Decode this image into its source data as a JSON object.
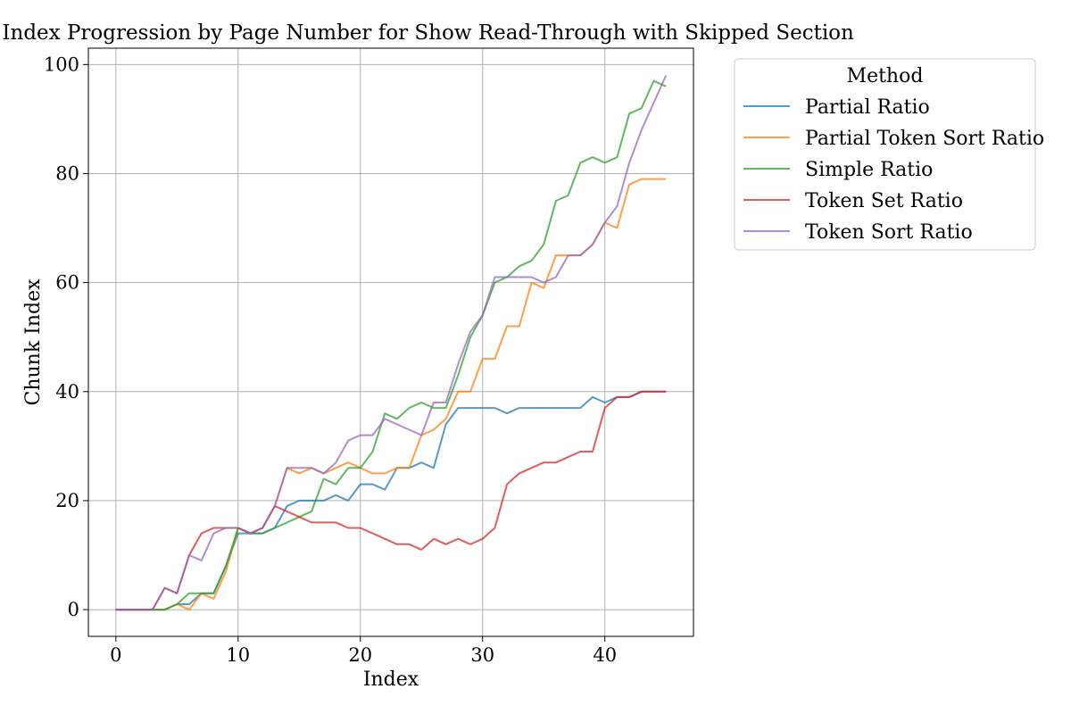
{
  "chart_data": {
    "type": "line",
    "title": "Chunk Index Progression by Page Number for Show Read-Through with Skipped Section",
    "xlabel": "Index",
    "ylabel": "Chunk Index",
    "xlim": [
      -2.25,
      47.25
    ],
    "ylim": [
      -4.9,
      103
    ],
    "xticks": [
      0,
      10,
      20,
      30,
      40
    ],
    "yticks": [
      0,
      20,
      40,
      60,
      80,
      100
    ],
    "grid": true,
    "legend": {
      "title": "Method",
      "placement": "outside-top-right"
    },
    "x": [
      0,
      1,
      2,
      3,
      4,
      5,
      6,
      7,
      8,
      9,
      10,
      11,
      12,
      13,
      14,
      15,
      16,
      17,
      18,
      19,
      20,
      21,
      22,
      23,
      24,
      25,
      26,
      27,
      28,
      29,
      30,
      31,
      32,
      33,
      34,
      35,
      36,
      37,
      38,
      39,
      40,
      41,
      42,
      43,
      44,
      45
    ],
    "series": [
      {
        "name": "Partial Ratio",
        "color": "#1f77b4",
        "values": [
          0,
          0,
          0,
          0,
          0,
          1,
          1,
          3,
          3,
          8,
          14,
          14,
          14,
          15,
          19,
          20,
          20,
          20,
          21,
          20,
          23,
          23,
          22,
          26,
          26,
          27,
          26,
          34,
          37,
          37,
          37,
          37,
          36,
          37,
          37,
          37,
          37,
          37,
          37,
          39,
          38,
          39,
          39,
          40,
          40,
          40
        ]
      },
      {
        "name": "Partial Token Sort Ratio",
        "color": "#ff7f0e",
        "values": [
          0,
          0,
          0,
          0,
          0,
          1,
          0,
          3,
          2,
          7,
          15,
          14,
          15,
          19,
          26,
          25,
          26,
          25,
          26,
          27,
          26,
          25,
          25,
          26,
          26,
          32,
          33,
          35,
          40,
          40,
          46,
          46,
          52,
          52,
          60,
          59,
          65,
          65,
          65,
          67,
          71,
          70,
          78,
          79,
          79,
          79
        ]
      },
      {
        "name": "Simple Ratio",
        "color": "#2ca02c",
        "values": [
          0,
          0,
          0,
          0,
          0,
          1,
          3,
          3,
          3,
          8,
          15,
          14,
          14,
          15,
          16,
          17,
          18,
          24,
          23,
          26,
          26,
          29,
          36,
          35,
          37,
          38,
          37,
          37,
          43,
          50,
          54,
          60,
          61,
          63,
          64,
          67,
          75,
          76,
          82,
          83,
          82,
          83,
          91,
          92,
          97,
          96
        ]
      },
      {
        "name": "Token Set Ratio",
        "color": "#d62728",
        "values": [
          0,
          0,
          0,
          0,
          4,
          3,
          10,
          14,
          15,
          15,
          15,
          14,
          15,
          19,
          18,
          17,
          16,
          16,
          16,
          15,
          15,
          14,
          13,
          12,
          12,
          11,
          13,
          12,
          13,
          12,
          13,
          15,
          23,
          25,
          26,
          27,
          27,
          28,
          29,
          29,
          37,
          39,
          39,
          40,
          40,
          40
        ]
      },
      {
        "name": "Token Sort Ratio",
        "color": "#9467bd",
        "values": [
          0,
          0,
          0,
          0,
          4,
          3,
          10,
          9,
          14,
          15,
          15,
          14,
          15,
          19,
          26,
          26,
          26,
          25,
          27,
          31,
          32,
          32,
          35,
          34,
          33,
          32,
          38,
          38,
          45,
          51,
          54,
          61,
          61,
          61,
          61,
          60,
          61,
          65,
          65,
          67,
          71,
          74,
          82,
          88,
          93,
          98
        ]
      }
    ]
  }
}
